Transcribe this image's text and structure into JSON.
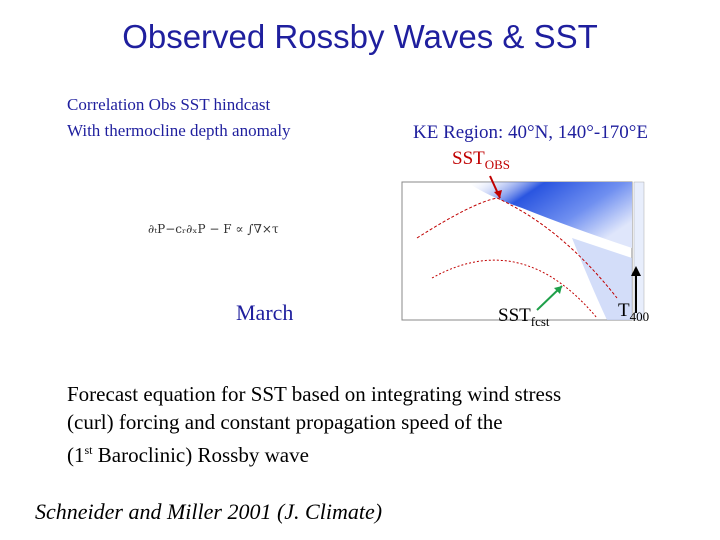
{
  "slide": {
    "title": "Observed Rossby Waves & SST",
    "correlation_line1": "Correlation Obs SST hindcast",
    "correlation_line2": "With thermocline depth anomaly",
    "region_label": "KE Region: 40°N, 140°-170°E",
    "sst_obs_base": "SST",
    "sst_obs_sub": "OBS",
    "equation": "∂ₜP−cᵣ∂ₓP − F ∝ ∫∇×τ",
    "month_label": "March",
    "sst_fcst_base": "SST",
    "sst_fcst_sub": "fcst",
    "t400_base": "T",
    "t400_sub": "400",
    "forecast_line1": "Forecast equation for SST based on integrating wind stress",
    "forecast_line2": "(curl) forcing and constant propagation speed of the",
    "forecast_line3_pre": "(1",
    "forecast_line3_sup": "st",
    "forecast_line3_post": " Baroclinic) Rossby wave",
    "citation": "Schneider and Miller 2001 (J. Climate)"
  },
  "colors": {
    "title_blue": "#1f1f9e",
    "obs_red": "#c00000",
    "plot_blue": "#1f4fd8"
  }
}
